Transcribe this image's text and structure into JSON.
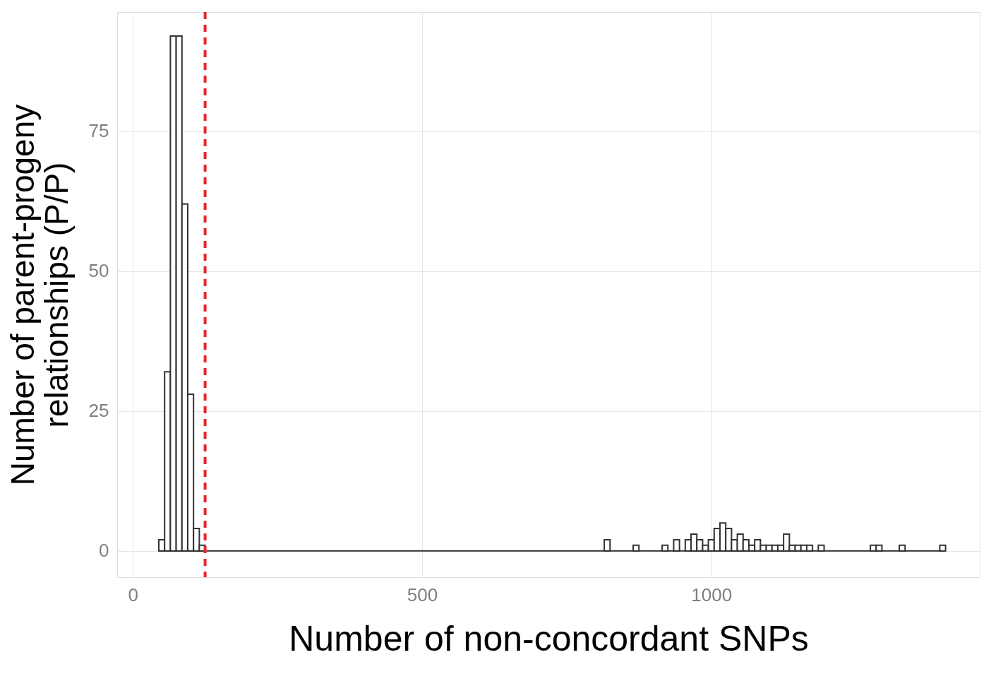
{
  "chart_data": {
    "type": "histogram",
    "xlabel": "Number of non-concordant SNPs",
    "ylabel": "Number of parent-progeny\nrelationships (P/P)",
    "bins": [
      45,
      55,
      65,
      75,
      85,
      95,
      105,
      115,
      125,
      135,
      145,
      155,
      165,
      175,
      185,
      195,
      205,
      215,
      225,
      235,
      245,
      255,
      265,
      275,
      285,
      295,
      305,
      315,
      325,
      335,
      345,
      355,
      365,
      375,
      385,
      395,
      405,
      415,
      425,
      435,
      445,
      455,
      465,
      475,
      485,
      495,
      505,
      515,
      525,
      535,
      545,
      555,
      565,
      575,
      585,
      595,
      605,
      615,
      625,
      635,
      645,
      655,
      665,
      675,
      685,
      695,
      705,
      715,
      725,
      735,
      745,
      755,
      765,
      775,
      785,
      795,
      805,
      815,
      825,
      835,
      845,
      855,
      865,
      875,
      885,
      895,
      905,
      915,
      925,
      935,
      945,
      955,
      965,
      975,
      985,
      995,
      1005,
      1015,
      1025,
      1035,
      1045,
      1055,
      1065,
      1075,
      1085,
      1095,
      1105,
      1115,
      1125,
      1135,
      1145,
      1155,
      1165,
      1175,
      1185,
      1195,
      1205,
      1215,
      1225,
      1235,
      1245,
      1255,
      1265,
      1275,
      1285,
      1295,
      1305,
      1315,
      1325,
      1335,
      1345,
      1355,
      1365,
      1375,
      1385,
      1395,
      1405
    ],
    "values": [
      2,
      32,
      92,
      92,
      62,
      28,
      4,
      1,
      0,
      0,
      0,
      0,
      0,
      0,
      0,
      0,
      0,
      0,
      0,
      0,
      0,
      0,
      0,
      0,
      0,
      0,
      0,
      0,
      0,
      0,
      0,
      0,
      0,
      0,
      0,
      0,
      0,
      0,
      0,
      0,
      0,
      0,
      0,
      0,
      0,
      0,
      0,
      0,
      0,
      0,
      0,
      0,
      0,
      0,
      0,
      0,
      0,
      0,
      0,
      0,
      0,
      0,
      0,
      0,
      0,
      0,
      0,
      0,
      0,
      0,
      0,
      0,
      0,
      0,
      0,
      0,
      0,
      2,
      0,
      0,
      0,
      0,
      1,
      0,
      0,
      0,
      0,
      1,
      0,
      2,
      0,
      2,
      3,
      2,
      1,
      2,
      4,
      5,
      4,
      2,
      3,
      2,
      1,
      2,
      1,
      1,
      1,
      1,
      3,
      1,
      1,
      1,
      1,
      0,
      1,
      0,
      0,
      0,
      0,
      0,
      0,
      0,
      0,
      1,
      1,
      0,
      0,
      0,
      1,
      0,
      0,
      0,
      0,
      0,
      0,
      1
    ],
    "color": "#ffffff",
    "xlim": [
      -27,
      1464
    ],
    "ylim": [
      -4.7,
      96.3
    ],
    "xticks": [
      0,
      500,
      1000
    ],
    "yticks": [
      0,
      25,
      50,
      75
    ],
    "grid": true,
    "ref_lines": [
      {
        "axis": "x",
        "value": 125,
        "color": "#e8262b",
        "line_style": "dashed"
      }
    ]
  }
}
